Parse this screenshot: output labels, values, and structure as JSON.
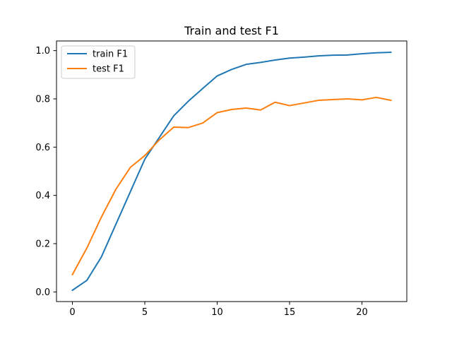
{
  "chart_data": {
    "type": "line",
    "title": "Train and test F1",
    "xlabel": "",
    "ylabel": "",
    "xlim": [
      -1.1,
      23.1
    ],
    "ylim": [
      -0.04,
      1.04
    ],
    "xticks": [
      0,
      5,
      10,
      15,
      20
    ],
    "yticks": [
      0.0,
      0.2,
      0.4,
      0.6,
      0.8,
      1.0
    ],
    "xtick_labels": [
      "0",
      "5",
      "10",
      "15",
      "20"
    ],
    "ytick_labels": [
      "0.0",
      "0.2",
      "0.4",
      "0.6",
      "0.8",
      "1.0"
    ],
    "grid": false,
    "legend_position": "upper-left",
    "x": [
      0,
      1,
      2,
      3,
      4,
      5,
      6,
      7,
      8,
      9,
      10,
      11,
      12,
      13,
      14,
      15,
      16,
      17,
      18,
      19,
      20,
      21,
      22
    ],
    "series": [
      {
        "name": "train F1",
        "color": "#1f77b4",
        "values": [
          0.007,
          0.048,
          0.145,
          0.28,
          0.415,
          0.55,
          0.64,
          0.73,
          0.79,
          0.843,
          0.895,
          0.922,
          0.943,
          0.951,
          0.961,
          0.969,
          0.973,
          0.978,
          0.981,
          0.982,
          0.987,
          0.991,
          0.993
        ]
      },
      {
        "name": "test F1",
        "color": "#ff7f0e",
        "values": [
          0.072,
          0.182,
          0.31,
          0.425,
          0.516,
          0.565,
          0.63,
          0.683,
          0.681,
          0.7,
          0.743,
          0.756,
          0.762,
          0.754,
          0.786,
          0.772,
          0.783,
          0.794,
          0.797,
          0.8,
          0.796,
          0.806,
          0.794
        ]
      }
    ]
  }
}
